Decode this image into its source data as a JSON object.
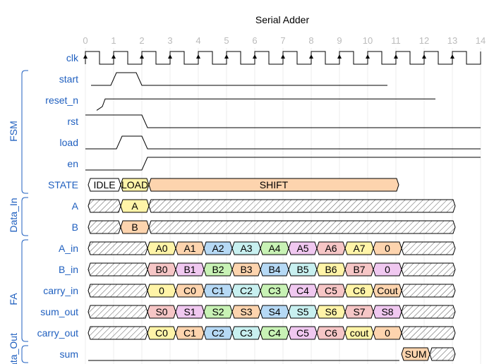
{
  "title": "Serial Adder",
  "tick_labels": [
    "0",
    "1",
    "2",
    "3",
    "4",
    "5",
    "6",
    "7",
    "8",
    "9",
    "10",
    "11",
    "12",
    "13",
    "14"
  ],
  "groups": [
    {
      "name": "FSM"
    },
    {
      "name": "Data_In"
    },
    {
      "name": "FA"
    },
    {
      "name": "ata_Out"
    }
  ],
  "signals": [
    {
      "name": "clk",
      "type": "clock"
    },
    {
      "name": "start",
      "type": "bit"
    },
    {
      "name": "reset_n",
      "type": "bit"
    },
    {
      "name": "rst",
      "type": "bit"
    },
    {
      "name": "load",
      "type": "bit"
    },
    {
      "name": "en",
      "type": "bit"
    },
    {
      "name": "STATE",
      "type": "bus",
      "segments": [
        {
          "label": "IDLE",
          "color": "#ffffff"
        },
        {
          "label": "LOAD",
          "color": "#fff4a8"
        },
        {
          "label": "SHIFT",
          "color": "#fdd4ae"
        }
      ]
    },
    {
      "name": "A",
      "type": "bus",
      "segments": [
        {
          "label": "",
          "color": "hatch"
        },
        {
          "label": "A",
          "color": "#fff4a8"
        },
        {
          "label": "",
          "color": "hatch"
        }
      ]
    },
    {
      "name": "B",
      "type": "bus",
      "segments": [
        {
          "label": "",
          "color": "hatch"
        },
        {
          "label": "B",
          "color": "#fdd4ae"
        },
        {
          "label": "",
          "color": "hatch"
        }
      ]
    },
    {
      "name": "A_in",
      "type": "bus",
      "segments": [
        {
          "label": "",
          "color": "hatch"
        },
        {
          "label": "A0",
          "color": "#fff4a8"
        },
        {
          "label": "A1",
          "color": "#fdd4ae"
        },
        {
          "label": "A2",
          "color": "#b6d9f5"
        },
        {
          "label": "A3",
          "color": "#c8f0f0"
        },
        {
          "label": "A4",
          "color": "#c8f2b5"
        },
        {
          "label": "A5",
          "color": "#f0c8f0"
        },
        {
          "label": "A6",
          "color": "#f6c6c6"
        },
        {
          "label": "A7",
          "color": "#fff4a8"
        },
        {
          "label": "0",
          "color": "#fdd4ae"
        },
        {
          "label": "",
          "color": "hatch"
        }
      ]
    },
    {
      "name": "B_in",
      "type": "bus",
      "segments": [
        {
          "label": "",
          "color": "hatch"
        },
        {
          "label": "B0",
          "color": "#f6c6c6"
        },
        {
          "label": "B1",
          "color": "#f0c8f0"
        },
        {
          "label": "B2",
          "color": "#c8f2b5"
        },
        {
          "label": "B3",
          "color": "#fdd4ae"
        },
        {
          "label": "B4",
          "color": "#b6d9f5"
        },
        {
          "label": "B5",
          "color": "#c8f0f0"
        },
        {
          "label": "B6",
          "color": "#fff4a8"
        },
        {
          "label": "B7",
          "color": "#f6c6c6"
        },
        {
          "label": "0",
          "color": "#f0c8f0"
        },
        {
          "label": "",
          "color": "hatch"
        }
      ]
    },
    {
      "name": "carry_in",
      "type": "bus",
      "segments": [
        {
          "label": "",
          "color": "hatch"
        },
        {
          "label": "0",
          "color": "#fff4a8"
        },
        {
          "label": "C0",
          "color": "#fdd4ae"
        },
        {
          "label": "C1",
          "color": "#b6d9f5"
        },
        {
          "label": "C2",
          "color": "#c8f0f0"
        },
        {
          "label": "C3",
          "color": "#c8f2b5"
        },
        {
          "label": "C4",
          "color": "#f0c8f0"
        },
        {
          "label": "C5",
          "color": "#f6c6c6"
        },
        {
          "label": "C6",
          "color": "#fff4a8"
        },
        {
          "label": "Cout",
          "color": "#fdd4ae"
        },
        {
          "label": "",
          "color": "hatch"
        }
      ]
    },
    {
      "name": "sum_out",
      "type": "bus",
      "segments": [
        {
          "label": "",
          "color": "hatch"
        },
        {
          "label": "S0",
          "color": "#f6c6c6"
        },
        {
          "label": "S1",
          "color": "#f0c8f0"
        },
        {
          "label": "S2",
          "color": "#c8f2b5"
        },
        {
          "label": "S3",
          "color": "#fdd4ae"
        },
        {
          "label": "S4",
          "color": "#b6d9f5"
        },
        {
          "label": "S5",
          "color": "#c8f0f0"
        },
        {
          "label": "S6",
          "color": "#fff4a8"
        },
        {
          "label": "S7",
          "color": "#f6c6c6"
        },
        {
          "label": "S8",
          "color": "#f0c8f0"
        },
        {
          "label": "",
          "color": "hatch"
        }
      ]
    },
    {
      "name": "carry_out",
      "type": "bus",
      "segments": [
        {
          "label": "",
          "color": "hatch"
        },
        {
          "label": "C0",
          "color": "#fff4a8"
        },
        {
          "label": "C1",
          "color": "#fdd4ae"
        },
        {
          "label": "C2",
          "color": "#b6d9f5"
        },
        {
          "label": "C3",
          "color": "#c8f0f0"
        },
        {
          "label": "C4",
          "color": "#c8f2b5"
        },
        {
          "label": "C5",
          "color": "#f0c8f0"
        },
        {
          "label": "C6",
          "color": "#f6c6c6"
        },
        {
          "label": "cout",
          "color": "#fff4a8"
        },
        {
          "label": "0",
          "color": "#fdd4ae"
        },
        {
          "label": "",
          "color": "hatch"
        }
      ]
    },
    {
      "name": "sum",
      "type": "bus",
      "segments": [
        {
          "label": "",
          "color": "line"
        },
        {
          "label": "SUM",
          "color": "#fdd4ae"
        },
        {
          "label": "",
          "color": "hatch"
        }
      ]
    }
  ]
}
